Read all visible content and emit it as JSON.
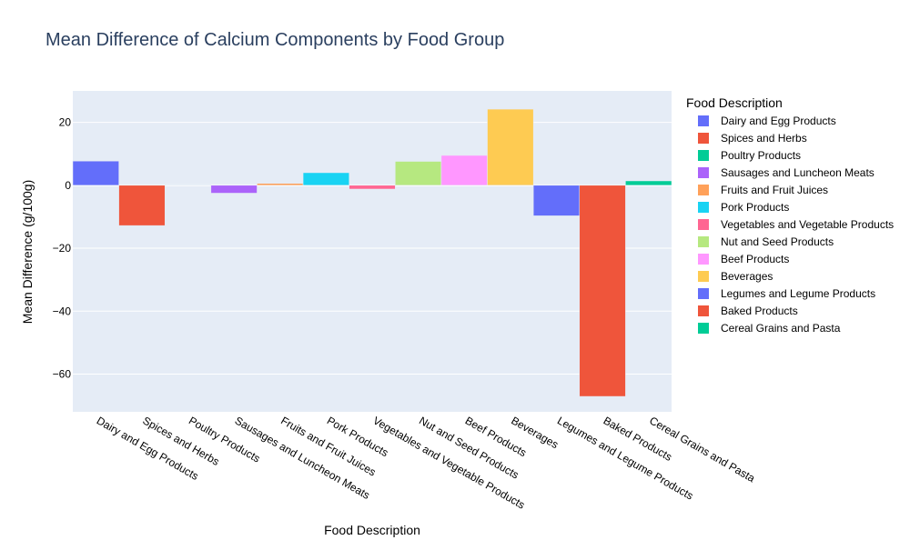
{
  "chart_data": {
    "type": "bar",
    "title": "Mean Difference of Calcium Components by Food Group",
    "xlabel": "Food Description",
    "ylabel": "Mean Difference (g/100g)",
    "legend_title": "Food Description",
    "legend_position": "right",
    "grid": true,
    "ylim": [
      -72,
      30
    ],
    "yticks": [
      20,
      0,
      -20,
      -40,
      -60
    ],
    "ytick_labels": [
      "20",
      "0",
      "−20",
      "−40",
      "−60"
    ],
    "categories": [
      "Dairy and Egg Products",
      "Spices and Herbs",
      "Poultry Products",
      "Sausages and Luncheon Meats",
      "Fruits and Fruit Juices",
      "Pork Products",
      "Vegetables and Vegetable Products",
      "Nut and Seed Products",
      "Beef Products",
      "Beverages",
      "Legumes and Legume Products",
      "Baked Products",
      "Cereal Grains and Pasta"
    ],
    "values": [
      7.7,
      -12.8,
      0.1,
      -2.5,
      0.6,
      4.0,
      -1.2,
      7.6,
      9.5,
      24.2,
      -9.7,
      -67.1,
      1.4
    ],
    "colors": [
      "#636efa",
      "#EF553B",
      "#00cc96",
      "#ab63fa",
      "#FFA15A",
      "#19d3f3",
      "#FF6692",
      "#B6E880",
      "#FF97FF",
      "#FECB52",
      "#636efa",
      "#EF553B",
      "#00cc96"
    ]
  }
}
